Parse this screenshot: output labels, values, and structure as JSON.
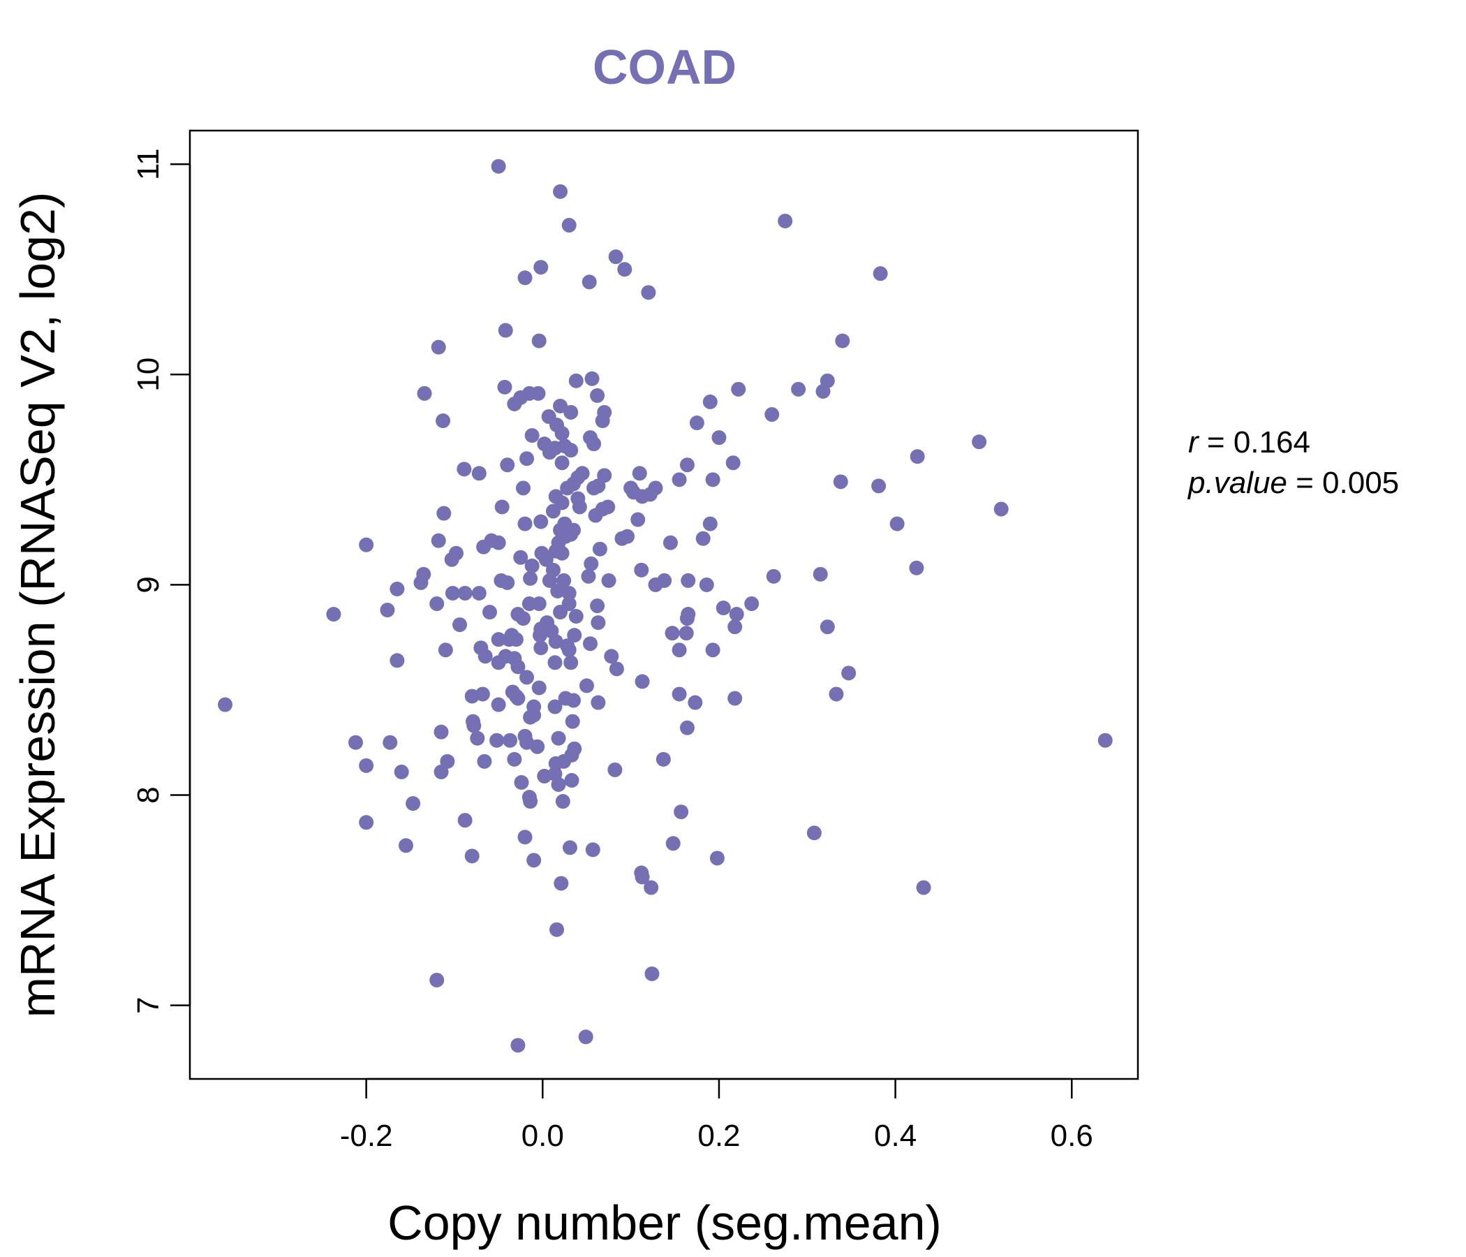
{
  "chart_data": {
    "type": "scatter",
    "title": "COAD",
    "xlabel": "Copy number (seg.mean)",
    "ylabel": "mRNA Expression (RNASeq V2, log2)",
    "xlim": [
      -0.4,
      0.675
    ],
    "ylim": [
      6.65,
      11.16
    ],
    "xticks": [
      -0.2,
      0.0,
      0.2,
      0.4,
      0.6
    ],
    "xtick_labels": [
      "-0.2",
      "0.0",
      "0.2",
      "0.4",
      "0.6"
    ],
    "yticks": [
      7,
      8,
      9,
      10,
      11
    ],
    "ytick_labels": [
      "7",
      "8",
      "9",
      "10",
      "11"
    ],
    "grid": false,
    "legend": "none",
    "colors": {
      "points": "#7570b3",
      "title": "#7570b3",
      "axes": "#000000"
    },
    "annotation": {
      "r_symbol": "r",
      "r_value": "0.164",
      "p_symbol": "p.value",
      "p_value": "0.005"
    },
    "points": [
      [
        -0.05,
        10.99
      ],
      [
        0.02,
        10.87
      ],
      [
        0.03,
        10.71
      ],
      [
        0.275,
        10.73
      ],
      [
        0.083,
        10.56
      ],
      [
        0.093,
        10.5
      ],
      [
        -0.002,
        10.51
      ],
      [
        -0.02,
        10.46
      ],
      [
        0.053,
        10.44
      ],
      [
        0.12,
        10.39
      ],
      [
        0.383,
        10.48
      ],
      [
        -0.042,
        10.21
      ],
      [
        -0.004,
        10.16
      ],
      [
        -0.118,
        10.13
      ],
      [
        0.34,
        10.16
      ],
      [
        -0.134,
        9.91
      ],
      [
        -0.043,
        9.94
      ],
      [
        -0.015,
        9.91
      ],
      [
        -0.005,
        9.91
      ],
      [
        -0.025,
        9.89
      ],
      [
        -0.032,
        9.86
      ],
      [
        0.038,
        9.97
      ],
      [
        0.056,
        9.98
      ],
      [
        0.062,
        9.9
      ],
      [
        0.02,
        9.85
      ],
      [
        0.032,
        9.82
      ],
      [
        0.007,
        9.8
      ],
      [
        0.07,
        9.82
      ],
      [
        0.068,
        9.78
      ],
      [
        0.016,
        9.76
      ],
      [
        0.022,
        9.72
      ],
      [
        -0.012,
        9.71
      ],
      [
        0.054,
        9.7
      ],
      [
        0.058,
        9.67
      ],
      [
        0.002,
        9.67
      ],
      [
        0.014,
        9.65
      ],
      [
        0.025,
        9.66
      ],
      [
        0.032,
        9.64
      ],
      [
        0.008,
        9.63
      ],
      [
        -0.113,
        9.78
      ],
      [
        0.19,
        9.87
      ],
      [
        0.222,
        9.93
      ],
      [
        0.26,
        9.81
      ],
      [
        0.29,
        9.93
      ],
      [
        0.318,
        9.92
      ],
      [
        0.323,
        9.97
      ],
      [
        0.175,
        9.77
      ],
      [
        0.2,
        9.7
      ],
      [
        0.495,
        9.68
      ],
      [
        0.425,
        9.61
      ],
      [
        -0.018,
        9.6
      ],
      [
        -0.04,
        9.57
      ],
      [
        -0.089,
        9.55
      ],
      [
        -0.072,
        9.53
      ],
      [
        0.022,
        9.58
      ],
      [
        0.045,
        9.53
      ],
      [
        0.04,
        9.51
      ],
      [
        0.035,
        9.48
      ],
      [
        0.028,
        9.46
      ],
      [
        0.07,
        9.52
      ],
      [
        0.11,
        9.53
      ],
      [
        0.1,
        9.46
      ],
      [
        0.103,
        9.44
      ],
      [
        0.113,
        9.42
      ],
      [
        0.122,
        9.43
      ],
      [
        0.128,
        9.46
      ],
      [
        0.063,
        9.47
      ],
      [
        0.058,
        9.46
      ],
      [
        0.155,
        9.5
      ],
      [
        0.164,
        9.57
      ],
      [
        0.216,
        9.58
      ],
      [
        0.193,
        9.5
      ],
      [
        0.338,
        9.49
      ],
      [
        0.381,
        9.47
      ],
      [
        0.52,
        9.36
      ],
      [
        -0.022,
        9.46
      ],
      [
        0.015,
        9.42
      ],
      [
        0.022,
        9.39
      ],
      [
        0.04,
        9.41
      ],
      [
        0.042,
        9.37
      ],
      [
        0.012,
        9.35
      ],
      [
        -0.046,
        9.37
      ],
      [
        0.06,
        9.33
      ],
      [
        0.074,
        9.37
      ],
      [
        0.068,
        9.36
      ],
      [
        0.108,
        9.31
      ],
      [
        0.19,
        9.29
      ],
      [
        0.402,
        9.29
      ],
      [
        -0.112,
        9.34
      ],
      [
        -0.05,
        9.2
      ],
      [
        -0.058,
        9.21
      ],
      [
        -0.067,
        9.18
      ],
      [
        -0.02,
        9.29
      ],
      [
        -0.002,
        9.3
      ],
      [
        0.025,
        9.29
      ],
      [
        0.02,
        9.26
      ],
      [
        0.035,
        9.26
      ],
      [
        0.032,
        9.24
      ],
      [
        0.026,
        9.23
      ],
      [
        0.018,
        9.2
      ],
      [
        0.096,
        9.23
      ],
      [
        0.09,
        9.22
      ],
      [
        0.145,
        9.2
      ],
      [
        0.182,
        9.22
      ],
      [
        -0.118,
        9.21
      ],
      [
        -0.2,
        9.19
      ],
      [
        -0.098,
        9.15
      ],
      [
        -0.103,
        9.12
      ],
      [
        -0.025,
        9.13
      ],
      [
        -0.001,
        9.15
      ],
      [
        0.004,
        9.12
      ],
      [
        0.015,
        9.16
      ],
      [
        0.022,
        9.15
      ],
      [
        0.065,
        9.17
      ],
      [
        0.055,
        9.1
      ],
      [
        0.012,
        9.07
      ],
      [
        -0.012,
        9.09
      ],
      [
        -0.135,
        9.05
      ],
      [
        -0.138,
        9.01
      ],
      [
        -0.047,
        9.02
      ],
      [
        -0.04,
        9.01
      ],
      [
        -0.014,
        9.03
      ],
      [
        0.008,
        9.02
      ],
      [
        0.024,
        9.02
      ],
      [
        0.052,
        9.04
      ],
      [
        0.075,
        9.02
      ],
      [
        0.112,
        9.07
      ],
      [
        0.128,
        9.0
      ],
      [
        0.138,
        9.02
      ],
      [
        0.165,
        9.02
      ],
      [
        0.186,
        9.0
      ],
      [
        0.262,
        9.04
      ],
      [
        0.315,
        9.05
      ],
      [
        0.424,
        9.08
      ],
      [
        -0.165,
        8.98
      ],
      [
        -0.102,
        8.96
      ],
      [
        -0.088,
        8.96
      ],
      [
        -0.072,
        8.96
      ],
      [
        0.017,
        8.97
      ],
      [
        0.03,
        8.96
      ],
      [
        -0.015,
        8.91
      ],
      [
        -0.004,
        8.91
      ],
      [
        0.03,
        8.91
      ],
      [
        0.062,
        8.9
      ],
      [
        0.205,
        8.89
      ],
      [
        0.237,
        8.91
      ],
      [
        -0.237,
        8.86
      ],
      [
        -0.176,
        8.88
      ],
      [
        -0.12,
        8.91
      ],
      [
        -0.06,
        8.87
      ],
      [
        -0.028,
        8.86
      ],
      [
        -0.022,
        8.84
      ],
      [
        0.005,
        8.82
      ],
      [
        0.02,
        8.87
      ],
      [
        0.038,
        8.85
      ],
      [
        0.063,
        8.82
      ],
      [
        0.165,
        8.86
      ],
      [
        0.164,
        8.84
      ],
      [
        0.22,
        8.86
      ],
      [
        -0.094,
        8.81
      ],
      [
        -0.002,
        8.79
      ],
      [
        -0.003,
        8.76
      ],
      [
        0.01,
        8.78
      ],
      [
        0.036,
        8.76
      ],
      [
        0.147,
        8.77
      ],
      [
        0.163,
        8.77
      ],
      [
        0.218,
        8.8
      ],
      [
        0.323,
        8.8
      ],
      [
        -0.05,
        8.74
      ],
      [
        -0.035,
        8.76
      ],
      [
        -0.038,
        8.74
      ],
      [
        -0.03,
        8.74
      ],
      [
        -0.07,
        8.7
      ],
      [
        -0.002,
        8.7
      ],
      [
        0.015,
        8.73
      ],
      [
        0.028,
        8.71
      ],
      [
        0.054,
        8.72
      ],
      [
        0.03,
        8.69
      ],
      [
        -0.11,
        8.69
      ],
      [
        -0.065,
        8.66
      ],
      [
        -0.032,
        8.65
      ],
      [
        0.155,
        8.69
      ],
      [
        0.193,
        8.69
      ],
      [
        -0.165,
        8.64
      ],
      [
        -0.042,
        8.66
      ],
      [
        0.014,
        8.63
      ],
      [
        0.032,
        8.63
      ],
      [
        0.078,
        8.66
      ],
      [
        0.084,
        8.6
      ],
      [
        -0.028,
        8.61
      ],
      [
        -0.018,
        8.56
      ],
      [
        0.113,
        8.54
      ],
      [
        0.347,
        8.58
      ],
      [
        -0.05,
        8.63
      ],
      [
        -0.004,
        8.51
      ],
      [
        0.05,
        8.52
      ],
      [
        -0.08,
        8.47
      ],
      [
        -0.068,
        8.48
      ],
      [
        -0.034,
        8.49
      ],
      [
        -0.03,
        8.47
      ],
      [
        -0.028,
        8.46
      ],
      [
        0.026,
        8.46
      ],
      [
        0.035,
        8.45
      ],
      [
        0.063,
        8.44
      ],
      [
        0.155,
        8.48
      ],
      [
        0.173,
        8.44
      ],
      [
        0.218,
        8.46
      ],
      [
        0.333,
        8.48
      ],
      [
        -0.36,
        8.43
      ],
      [
        -0.05,
        8.43
      ],
      [
        -0.01,
        8.42
      ],
      [
        0.014,
        8.42
      ],
      [
        -0.01,
        8.38
      ],
      [
        -0.014,
        8.37
      ],
      [
        0.034,
        8.35
      ],
      [
        -0.079,
        8.35
      ],
      [
        -0.078,
        8.33
      ],
      [
        0.164,
        8.32
      ],
      [
        -0.115,
        8.3
      ],
      [
        -0.212,
        8.25
      ],
      [
        -0.173,
        8.25
      ],
      [
        -0.074,
        8.27
      ],
      [
        -0.052,
        8.26
      ],
      [
        -0.037,
        8.26
      ],
      [
        -0.02,
        8.28
      ],
      [
        -0.018,
        8.25
      ],
      [
        0.018,
        8.27
      ],
      [
        -0.006,
        8.23
      ],
      [
        0.036,
        8.22
      ],
      [
        0.033,
        8.19
      ],
      [
        0.137,
        8.17
      ],
      [
        -0.108,
        8.16
      ],
      [
        -0.066,
        8.16
      ],
      [
        -0.032,
        8.17
      ],
      [
        0.024,
        8.16
      ],
      [
        0.015,
        8.15
      ],
      [
        -0.2,
        8.14
      ],
      [
        -0.16,
        8.11
      ],
      [
        -0.115,
        8.11
      ],
      [
        0.082,
        8.12
      ],
      [
        0.002,
        8.09
      ],
      [
        0.014,
        8.1
      ],
      [
        0.033,
        8.07
      ],
      [
        -0.024,
        8.06
      ],
      [
        0.018,
        8.05
      ],
      [
        -0.015,
        7.99
      ],
      [
        -0.014,
        7.97
      ],
      [
        0.023,
        7.97
      ],
      [
        -0.147,
        7.96
      ],
      [
        -0.088,
        7.88
      ],
      [
        -0.2,
        7.87
      ],
      [
        0.157,
        7.92
      ],
      [
        -0.02,
        7.8
      ],
      [
        0.308,
        7.82
      ],
      [
        -0.155,
        7.76
      ],
      [
        0.031,
        7.75
      ],
      [
        0.057,
        7.74
      ],
      [
        0.148,
        7.77
      ],
      [
        -0.08,
        7.71
      ],
      [
        -0.01,
        7.69
      ],
      [
        0.198,
        7.7
      ],
      [
        0.112,
        7.63
      ],
      [
        0.113,
        7.61
      ],
      [
        0.021,
        7.58
      ],
      [
        0.123,
        7.56
      ],
      [
        0.432,
        7.56
      ],
      [
        0.016,
        7.36
      ],
      [
        -0.12,
        7.12
      ],
      [
        0.124,
        7.15
      ],
      [
        0.049,
        6.85
      ],
      [
        -0.028,
        6.81
      ],
      [
        0.638,
        8.26
      ]
    ]
  }
}
